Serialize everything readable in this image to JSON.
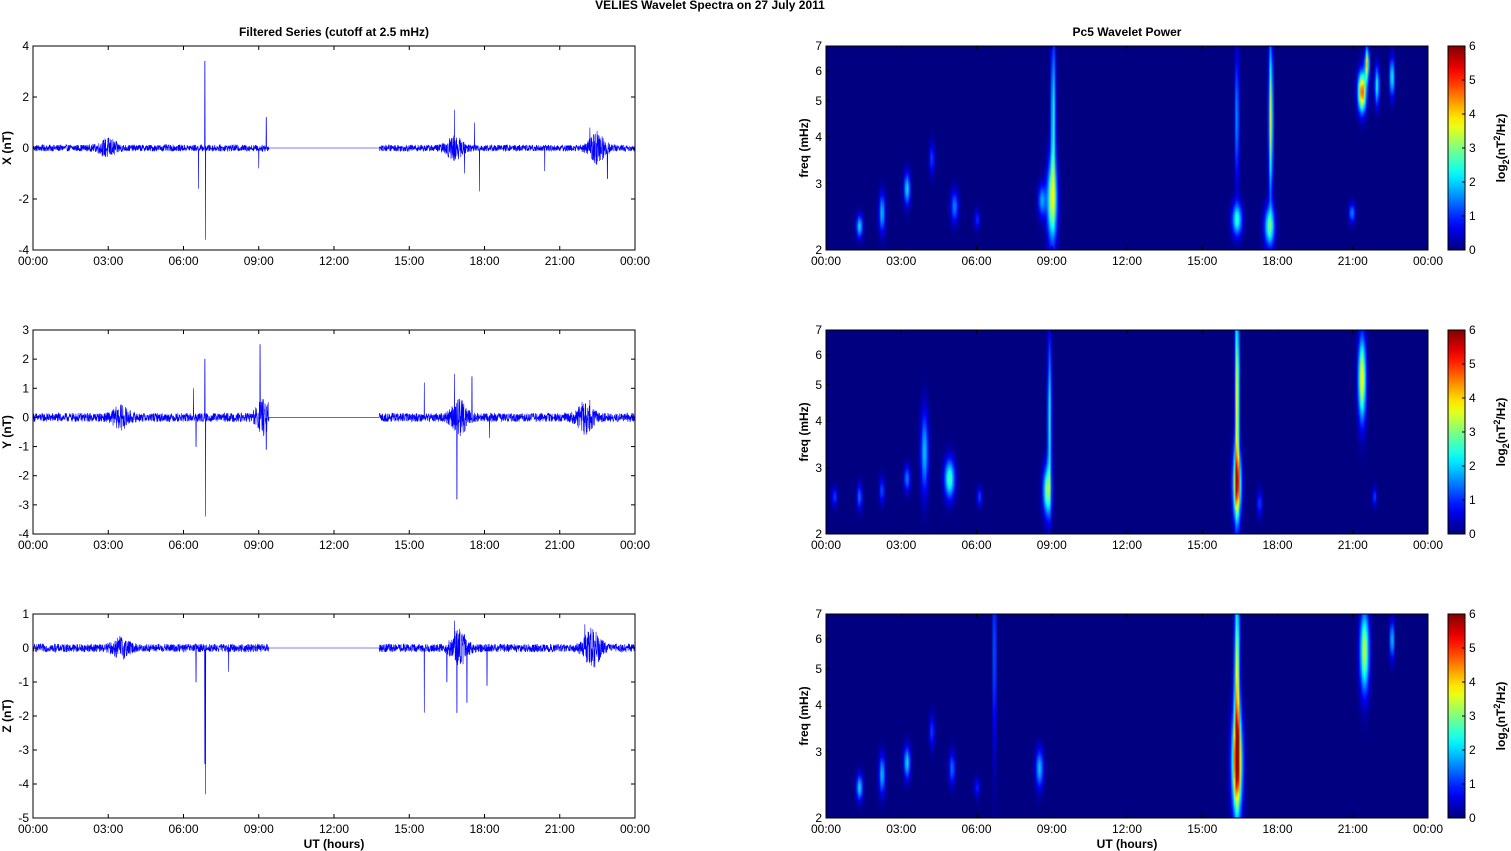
{
  "figure": {
    "suptitle": "VELIES Wavelet Spectra on 27 July      2011",
    "left_title": "Filtered Series (cutoff at 2.5 mHz)",
    "right_title": "Pc5 Wavelet Power",
    "xlabel": "UT (hours)",
    "colorbar_label": "log2(nT2/Hz)",
    "trace_color": "#0000ff"
  },
  "chart_data": [
    {
      "type": "line",
      "panel": "filtered-x",
      "ylabel": "X (nT)",
      "xlim": [
        0,
        24
      ],
      "ylim": [
        -4,
        4
      ],
      "x_ticks": [
        "00:00",
        "03:00",
        "06:00",
        "09:00",
        "12:00",
        "15:00",
        "18:00",
        "21:00",
        "00:00"
      ],
      "y_ticks": [
        -4,
        -2,
        0,
        2,
        4
      ],
      "noise_amplitude": 0.13,
      "gap_hours": [
        9.4,
        13.8
      ],
      "spikes": [
        {
          "x": 6.6,
          "y": -1.6
        },
        {
          "x": 6.85,
          "y": 3.4
        },
        {
          "x": 6.88,
          "y": -3.6
        },
        {
          "x": 9.0,
          "y": -0.8
        },
        {
          "x": 9.3,
          "y": 1.2
        },
        {
          "x": 16.8,
          "y": 1.5
        },
        {
          "x": 17.2,
          "y": -1.0
        },
        {
          "x": 17.6,
          "y": 1.0
        },
        {
          "x": 17.8,
          "y": -1.7
        },
        {
          "x": 20.4,
          "y": -0.9
        },
        {
          "x": 22.2,
          "y": 0.8
        },
        {
          "x": 22.9,
          "y": -1.2
        }
      ],
      "bursts": [
        {
          "x": 3.0,
          "amp": 0.3
        },
        {
          "x": 16.8,
          "amp": 0.4
        },
        {
          "x": 22.5,
          "amp": 0.55
        }
      ]
    },
    {
      "type": "line",
      "panel": "filtered-y",
      "ylabel": "Y (nT)",
      "xlim": [
        0,
        24
      ],
      "ylim": [
        -4,
        3
      ],
      "x_ticks": [
        "00:00",
        "03:00",
        "06:00",
        "09:00",
        "12:00",
        "15:00",
        "18:00",
        "21:00",
        "00:00"
      ],
      "y_ticks": [
        -4,
        -3,
        -2,
        -1,
        0,
        1,
        2,
        3
      ],
      "noise_amplitude": 0.15,
      "gap_hours": [
        9.4,
        13.8
      ],
      "spikes": [
        {
          "x": 6.4,
          "y": 1.0
        },
        {
          "x": 6.5,
          "y": -1.0
        },
        {
          "x": 6.85,
          "y": 2.0
        },
        {
          "x": 6.88,
          "y": -3.4
        },
        {
          "x": 9.05,
          "y": 2.5
        },
        {
          "x": 9.3,
          "y": -1.1
        },
        {
          "x": 15.6,
          "y": 1.2
        },
        {
          "x": 16.8,
          "y": 1.5
        },
        {
          "x": 16.9,
          "y": -2.8
        },
        {
          "x": 17.5,
          "y": 1.4
        },
        {
          "x": 18.2,
          "y": -0.7
        },
        {
          "x": 22.2,
          "y": 0.6
        }
      ],
      "bursts": [
        {
          "x": 3.5,
          "amp": 0.3
        },
        {
          "x": 9.2,
          "amp": 0.5
        },
        {
          "x": 17.0,
          "amp": 0.5
        },
        {
          "x": 22.0,
          "amp": 0.45
        }
      ]
    },
    {
      "type": "line",
      "panel": "filtered-z",
      "ylabel": "Z (nT)",
      "xlim": [
        0,
        24
      ],
      "ylim": [
        -5,
        1
      ],
      "x_ticks": [
        "00:00",
        "03:00",
        "06:00",
        "09:00",
        "12:00",
        "15:00",
        "18:00",
        "21:00",
        "00:00"
      ],
      "y_ticks": [
        -5,
        -4,
        -3,
        -2,
        -1,
        0,
        1
      ],
      "noise_amplitude": 0.12,
      "gap_hours": [
        9.4,
        13.8
      ],
      "spikes": [
        {
          "x": 6.5,
          "y": -1.0
        },
        {
          "x": 6.85,
          "y": -3.4
        },
        {
          "x": 6.88,
          "y": -4.3
        },
        {
          "x": 7.8,
          "y": -0.7
        },
        {
          "x": 15.6,
          "y": -1.9
        },
        {
          "x": 16.5,
          "y": -1.0
        },
        {
          "x": 16.8,
          "y": 0.8
        },
        {
          "x": 16.9,
          "y": -1.9
        },
        {
          "x": 17.3,
          "y": -1.6
        },
        {
          "x": 18.1,
          "y": -1.1
        },
        {
          "x": 22.0,
          "y": 0.7
        }
      ],
      "bursts": [
        {
          "x": 3.5,
          "amp": 0.25
        },
        {
          "x": 17.0,
          "amp": 0.45
        },
        {
          "x": 22.3,
          "amp": 0.5
        }
      ]
    },
    {
      "type": "heatmap",
      "panel": "power-x",
      "ylabel": "freq (mHz)",
      "y_scale": "log",
      "xlim": [
        0,
        24
      ],
      "ylim": [
        2,
        7
      ],
      "x_ticks": [
        "00:00",
        "03:00",
        "06:00",
        "09:00",
        "12:00",
        "15:00",
        "18:00",
        "21:00",
        "00:00"
      ],
      "y_ticks": [
        2,
        3,
        4,
        5,
        6,
        7
      ],
      "clim": [
        0,
        6
      ],
      "colorbar_ticks": [
        0,
        1,
        2,
        3,
        4,
        5,
        6
      ],
      "blobs": [
        {
          "t": 1.3,
          "f": 2.3,
          "dt": 0.12,
          "df": 0.07,
          "v": 2.2
        },
        {
          "t": 2.2,
          "f": 2.5,
          "dt": 0.12,
          "df": 0.12,
          "v": 2.0
        },
        {
          "t": 3.2,
          "f": 2.9,
          "dt": 0.12,
          "df": 0.1,
          "v": 2.2
        },
        {
          "t": 4.2,
          "f": 3.5,
          "dt": 0.1,
          "df": 0.1,
          "v": 1.2
        },
        {
          "t": 5.1,
          "f": 2.6,
          "dt": 0.15,
          "df": 0.1,
          "v": 1.6
        },
        {
          "t": 6.0,
          "f": 2.4,
          "dt": 0.1,
          "df": 0.06,
          "v": 1.1
        },
        {
          "t": 8.6,
          "f": 2.7,
          "dt": 0.15,
          "df": 0.1,
          "v": 1.8
        },
        {
          "t": 9.0,
          "f": 2.7,
          "dt": 0.2,
          "df": 0.25,
          "v": 3.3
        },
        {
          "t": 9.05,
          "f": 4.5,
          "dt": 0.09,
          "df": 0.5,
          "v": 2.5
        },
        {
          "t": 16.4,
          "f": 2.4,
          "dt": 0.2,
          "df": 0.1,
          "v": 2.5
        },
        {
          "t": 16.4,
          "f": 4.5,
          "dt": 0.08,
          "df": 0.4,
          "v": 1.8
        },
        {
          "t": 17.7,
          "f": 2.3,
          "dt": 0.2,
          "df": 0.12,
          "v": 2.8
        },
        {
          "t": 17.75,
          "f": 4.5,
          "dt": 0.08,
          "df": 0.45,
          "v": 3.8
        },
        {
          "t": 21.0,
          "f": 2.5,
          "dt": 0.12,
          "df": 0.06,
          "v": 1.6
        },
        {
          "t": 21.4,
          "f": 5.3,
          "dt": 0.16,
          "df": 0.12,
          "v": 5.0
        },
        {
          "t": 21.6,
          "f": 6.3,
          "dt": 0.08,
          "df": 0.1,
          "v": 4.0
        },
        {
          "t": 22.0,
          "f": 5.5,
          "dt": 0.09,
          "df": 0.12,
          "v": 2.5
        },
        {
          "t": 22.6,
          "f": 5.8,
          "dt": 0.09,
          "df": 0.12,
          "v": 2.5
        }
      ]
    },
    {
      "type": "heatmap",
      "panel": "power-y",
      "ylabel": "freq (mHz)",
      "y_scale": "log",
      "xlim": [
        0,
        24
      ],
      "ylim": [
        2,
        7
      ],
      "x_ticks": [
        "00:00",
        "03:00",
        "06:00",
        "09:00",
        "12:00",
        "15:00",
        "18:00",
        "21:00",
        "00:00"
      ],
      "y_ticks": [
        2,
        3,
        4,
        5,
        6,
        7
      ],
      "clim": [
        0,
        6
      ],
      "colorbar_ticks": [
        0,
        1,
        2,
        3,
        4,
        5,
        6
      ],
      "blobs": [
        {
          "t": 0.3,
          "f": 2.5,
          "dt": 0.1,
          "df": 0.06,
          "v": 1.2
        },
        {
          "t": 1.3,
          "f": 2.5,
          "dt": 0.1,
          "df": 0.08,
          "v": 1.5
        },
        {
          "t": 2.2,
          "f": 2.6,
          "dt": 0.1,
          "df": 0.08,
          "v": 1.3
        },
        {
          "t": 3.2,
          "f": 2.8,
          "dt": 0.12,
          "df": 0.08,
          "v": 1.6
        },
        {
          "t": 3.9,
          "f": 3.3,
          "dt": 0.15,
          "df": 0.25,
          "v": 2.0
        },
        {
          "t": 4.9,
          "f": 2.8,
          "dt": 0.2,
          "df": 0.12,
          "v": 2.8
        },
        {
          "t": 6.1,
          "f": 2.5,
          "dt": 0.1,
          "df": 0.06,
          "v": 1.2
        },
        {
          "t": 8.8,
          "f": 2.6,
          "dt": 0.16,
          "df": 0.15,
          "v": 3.0
        },
        {
          "t": 8.9,
          "f": 4.0,
          "dt": 0.08,
          "df": 0.5,
          "v": 2.5
        },
        {
          "t": 16.4,
          "f": 2.7,
          "dt": 0.16,
          "df": 0.2,
          "v": 4.5
        },
        {
          "t": 16.4,
          "f": 4.5,
          "dt": 0.08,
          "df": 0.6,
          "v": 4.2
        },
        {
          "t": 17.3,
          "f": 2.4,
          "dt": 0.1,
          "df": 0.08,
          "v": 1.2
        },
        {
          "t": 21.4,
          "f": 5.2,
          "dt": 0.15,
          "df": 0.25,
          "v": 4.0
        },
        {
          "t": 21.9,
          "f": 2.5,
          "dt": 0.08,
          "df": 0.06,
          "v": 1.2
        }
      ]
    },
    {
      "type": "heatmap",
      "panel": "power-z",
      "ylabel": "freq (mHz)",
      "y_scale": "log",
      "xlim": [
        0,
        24
      ],
      "ylim": [
        2,
        7
      ],
      "x_ticks": [
        "00:00",
        "03:00",
        "06:00",
        "09:00",
        "12:00",
        "15:00",
        "18:00",
        "21:00",
        "00:00"
      ],
      "y_ticks": [
        2,
        3,
        4,
        5,
        6,
        7
      ],
      "clim": [
        0,
        6
      ],
      "colorbar_ticks": [
        0,
        1,
        2,
        3,
        4,
        5,
        6
      ],
      "blobs": [
        {
          "t": 1.3,
          "f": 2.4,
          "dt": 0.12,
          "df": 0.08,
          "v": 2.2
        },
        {
          "t": 2.2,
          "f": 2.6,
          "dt": 0.12,
          "df": 0.12,
          "v": 2.0
        },
        {
          "t": 3.2,
          "f": 2.8,
          "dt": 0.12,
          "df": 0.1,
          "v": 2.2
        },
        {
          "t": 4.2,
          "f": 3.4,
          "dt": 0.1,
          "df": 0.1,
          "v": 1.2
        },
        {
          "t": 5.0,
          "f": 2.7,
          "dt": 0.12,
          "df": 0.1,
          "v": 1.5
        },
        {
          "t": 6.0,
          "f": 2.4,
          "dt": 0.1,
          "df": 0.06,
          "v": 1.0
        },
        {
          "t": 8.5,
          "f": 2.7,
          "dt": 0.15,
          "df": 0.12,
          "v": 2.0
        },
        {
          "t": 6.7,
          "f": 5.5,
          "dt": 0.06,
          "df": 0.6,
          "v": 1.8
        },
        {
          "t": 16.4,
          "f": 2.8,
          "dt": 0.2,
          "df": 0.3,
          "v": 5.2
        },
        {
          "t": 16.4,
          "f": 4.5,
          "dt": 0.1,
          "df": 0.6,
          "v": 4.0
        },
        {
          "t": 21.5,
          "f": 5.6,
          "dt": 0.18,
          "df": 0.25,
          "v": 3.5
        },
        {
          "t": 22.6,
          "f": 6.0,
          "dt": 0.08,
          "df": 0.12,
          "v": 2.2
        }
      ]
    }
  ]
}
